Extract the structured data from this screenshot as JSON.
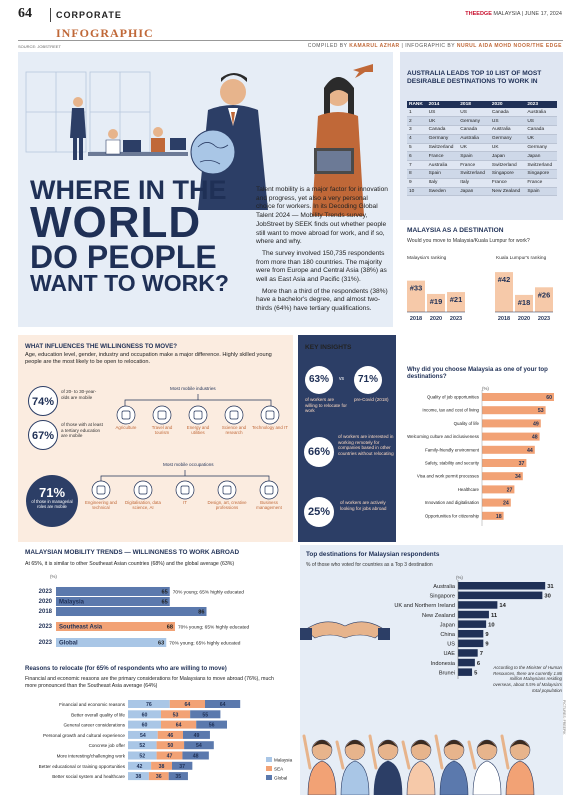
{
  "header": {
    "page_number": "64",
    "section": "CORPORATE",
    "masthead_brand": "THEEDGE",
    "masthead_rest": " MALAYSIA | JUNE 17, 2024",
    "infographic_label": "INFOGRAPHIC",
    "source": "SOURCE: JOBSTREET",
    "credit_compiled_prefix": "COMPILED BY ",
    "credit_compiled_name": "KAMARUL AZHAR",
    "credit_sep": " | INFOGRAPHIC BY ",
    "credit_infographic_name": "NURUL AIDA MOHD NOOR/THE EDGE"
  },
  "hero": {
    "title_line1": "WHERE IN THE",
    "title_line2": "WORLD",
    "title_line3": "DO PEOPLE",
    "title_line4": "WANT TO WORK?",
    "intro_p1": "Talent mobility is a major factor for innovation and progress, yet also a very personal choice for workers. In its Decoding Global Talent 2024 — Mobility Trends survey, JobStreet by SEEK finds out whether people still want to move abroad for work, and if so, where and why.",
    "intro_p2": "The survey involved 150,735 respondents from more than 180 countries. The majority were from Europe and Central Asia (38%) as well as East Asia and Pacific (31%).",
    "intro_p3": "More than a third of the respondents (38%) have a bachelor's degree, and almost two-thirds (64%) have tertiary qualifications."
  },
  "australia": {
    "title": "AUSTRALIA LEADS TOP 10 LIST OF MOST DESIRABLE DESTINATIONS TO WORK IN",
    "headers": [
      "RANK",
      "2014",
      "2018",
      "2020",
      "2023"
    ],
    "rows": [
      [
        "1",
        "US",
        "US",
        "Canada",
        "Australia"
      ],
      [
        "2",
        "UK",
        "Germany",
        "US",
        "US"
      ],
      [
        "3",
        "Canada",
        "Canada",
        "Australia",
        "Canada"
      ],
      [
        "4",
        "Germany",
        "Australia",
        "Germany",
        "UK"
      ],
      [
        "5",
        "Switzerland",
        "UK",
        "UK",
        "Germany"
      ],
      [
        "6",
        "France",
        "Spain",
        "Japan",
        "Japan"
      ],
      [
        "7",
        "Australia",
        "France",
        "Switzerland",
        "Switzerland"
      ],
      [
        "8",
        "Spain",
        "Switzerland",
        "Singapore",
        "Singapore"
      ],
      [
        "9",
        "Italy",
        "Italy",
        "France",
        "France"
      ],
      [
        "10",
        "Sweden",
        "Japan",
        "New Zealand",
        "Spain"
      ]
    ]
  },
  "malaysia_destination": {
    "title": "MALAYSIA AS A DESTINATION",
    "question": "Would you move to Malaysia/Kuala Lumpur for work?",
    "my_label": "Malaysia's ranking",
    "kl_label": "Kuala Lumpur's ranking",
    "years": [
      "2018",
      "2020",
      "2023"
    ],
    "my_ranks": [
      "#33",
      "#19",
      "#21"
    ],
    "kl_ranks": [
      "#42",
      "#18",
      "#26"
    ],
    "my_values": [
      33,
      19,
      21
    ],
    "kl_values": [
      42,
      18,
      26
    ]
  },
  "influences": {
    "title": "WHAT INFLUENCES THE WILLINGNESS TO MOVE?",
    "desc": "Age, education level, gender, industry and occupation make a major difference. Highly skilled young people are the most likely to be open to relocation.",
    "stat1_pct": "74%",
    "stat1_text": "of 20- to 30-year-olds are mobile",
    "stat2_pct": "67%",
    "stat2_text": "of those with at least a tertiary education are mobile",
    "stat3_pct": "71%",
    "stat3_text": "of those in managerial roles are mobile",
    "industries_label": "Most mobile industries",
    "industries": [
      "Agriculture",
      "Travel and tourism",
      "Energy and utilities",
      "Science and research",
      "Technology and IT"
    ],
    "occupations_label": "Most mobile occupations",
    "occupations": [
      "Engineering and technical",
      "Digitalisation, data science, AI",
      "IT",
      "Design, art, creative professions",
      "Business management"
    ]
  },
  "key_insights": {
    "title": "KEY INSIGHTS",
    "i1_pct": "63%",
    "i1_text": "of workers are willing to relocate for work",
    "vs": "vs",
    "i2_pct": "71%",
    "i2_text": "pre-Covid (2018)",
    "i3_pct": "66%",
    "i3_text": "of workers are interested in working remotely for companies based in other countries without relocating",
    "i4_pct": "25%",
    "i4_text": "of workers are actively looking for jobs abroad"
  },
  "why_malaysia": {
    "title": "Why did you choose Malaysia as one of your top destinations?",
    "unit": "(%)"
  },
  "mobility": {
    "title": "MALAYSIAN MOBILITY TRENDS — WILLINGNESS TO WORK ABROAD",
    "desc": "At 65%, it is similar to other Southeast Asian countries (68%) and the global average (63%)",
    "unit": "(%)",
    "note_young_65": "70% young; 65% highly educated",
    "note_sea": "70% young; 65% highly educated",
    "note_global": "70% young; 65% highly educated"
  },
  "reasons": {
    "title": "Reasons to relocate (for 65% of respondents who are willing to move)",
    "desc": "Financial and economic reasons are the primary considerations for Malaysians to move abroad (76%), much more pronounced than the Southeast Asia average (64%)"
  },
  "destinations": {
    "title": "Top destinations for Malaysian respondents",
    "sub": "% of those who voted for countries as a Top 3 destination",
    "unit": "(%)",
    "note": "According to the Minister of Human Resources, there are currently 1.86 million Malaysians residing overseas, about 5.5% of Malaysia's total population"
  },
  "side_credit": "PICTURES: FREEPIK",
  "colors": {
    "navy": "#1f3056",
    "peach": "#f2a275",
    "light_blue": "#a9c6e6",
    "mid_blue": "#5b79ad"
  },
  "chart_data": [
    {
      "type": "bar",
      "title": "Why did you choose Malaysia as one of your top destinations?",
      "categories": [
        "Quality of job opportunities",
        "Income, tax and cost of living",
        "Quality of life",
        "Welcoming culture and inclusiveness",
        "Family-friendly environment",
        "Safety, stability and security",
        "Visa and work permit processes",
        "Healthcare",
        "Innovation and digitalisation",
        "Opportunities for citizenship"
      ],
      "values": [
        60,
        53,
        49,
        48,
        44,
        37,
        34,
        27,
        24,
        18
      ],
      "xlim": [
        0,
        65
      ],
      "ylabel": "(%)"
    },
    {
      "type": "bar",
      "title": "MALAYSIAN MOBILITY TRENDS — WILLINGNESS TO WORK ABROAD",
      "categories": [
        "2023",
        "2020",
        "2018",
        "2023",
        "2023"
      ],
      "labels": [
        "",
        "Malaysia",
        "",
        "Southeast Asia",
        "Global"
      ],
      "values": [
        65,
        65,
        86,
        68,
        63
      ],
      "xlim": [
        0,
        100
      ],
      "ylabel": "(%)"
    },
    {
      "type": "bar",
      "title": "Reasons to relocate (for 65% of respondents who are willing to move)",
      "categories": [
        "Financial and economic reasons",
        "Better overall quality of life",
        "General career considerations",
        "Personal growth and cultural experience",
        "Concrete job offer",
        "More interesting/challenging work",
        "Better educational or training opportunities",
        "Better social system and healthcare"
      ],
      "series": [
        {
          "name": "Malaysia",
          "values": [
            76,
            60,
            60,
            54,
            52,
            52,
            42,
            38
          ]
        },
        {
          "name": "SEA",
          "values": [
            64,
            53,
            64,
            46,
            50,
            47,
            38,
            36
          ]
        },
        {
          "name": "Global",
          "values": [
            64,
            55,
            56,
            49,
            54,
            48,
            37,
            35
          ]
        }
      ]
    },
    {
      "type": "bar",
      "title": "Top destinations for Malaysian respondents",
      "categories": [
        "Australia",
        "Singapore",
        "UK and Northern Ireland",
        "New Zealand",
        "Japan",
        "China",
        "US",
        "UAE",
        "Indonesia",
        "Brunei"
      ],
      "values": [
        31,
        30,
        14,
        11,
        10,
        9,
        9,
        7,
        6,
        5
      ],
      "xlim": [
        0,
        32
      ],
      "ylabel": "(%)"
    },
    {
      "type": "bar",
      "title": "Malaysia's ranking",
      "categories": [
        "2018",
        "2020",
        "2023"
      ],
      "values": [
        33,
        19,
        21
      ]
    },
    {
      "type": "bar",
      "title": "Kuala Lumpur's ranking",
      "categories": [
        "2018",
        "2020",
        "2023"
      ],
      "values": [
        42,
        18,
        26
      ]
    }
  ]
}
